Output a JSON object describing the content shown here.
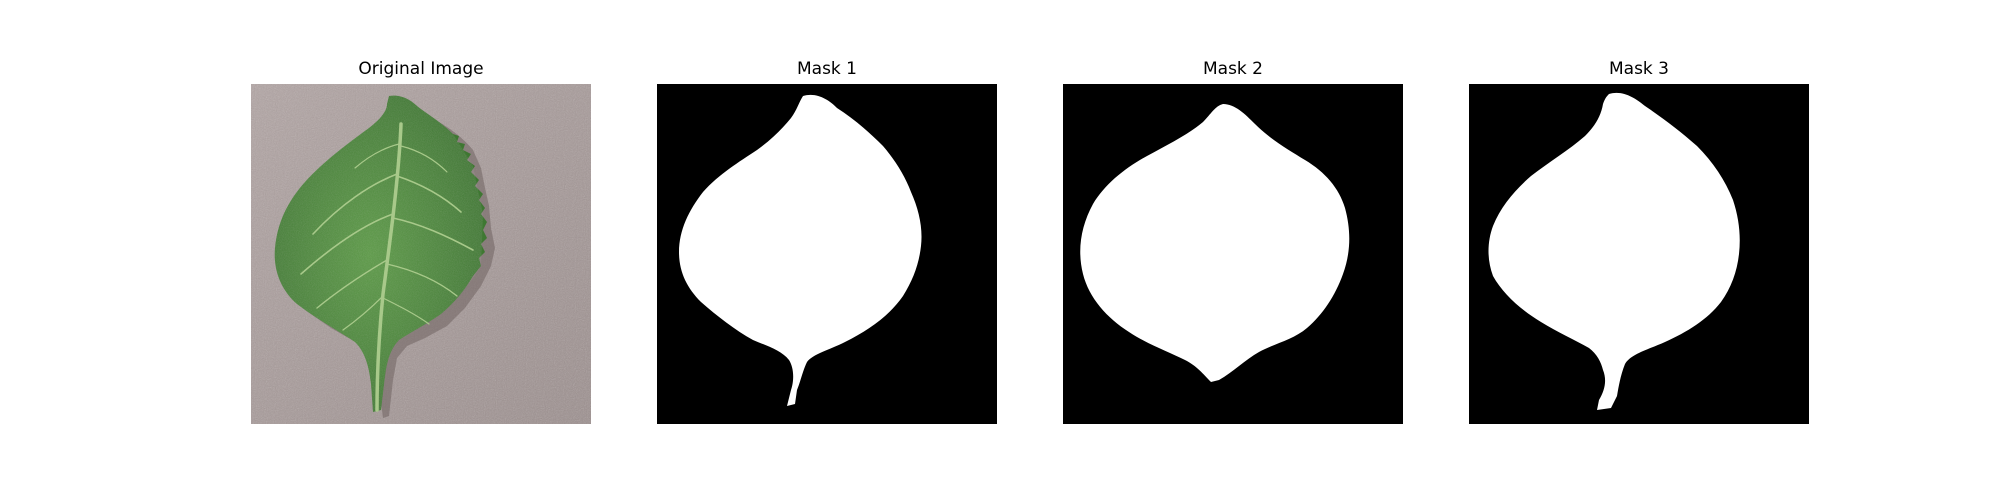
{
  "panels": [
    {
      "title": "Original Image",
      "kind": "photo"
    },
    {
      "title": "Mask 1",
      "kind": "mask"
    },
    {
      "title": "Mask 2",
      "kind": "mask"
    },
    {
      "title": "Mask 3",
      "kind": "mask"
    }
  ],
  "colors": {
    "background": "#ffffff",
    "mask_background": "#000000",
    "mask_foreground": "#ffffff",
    "leaf_green": "#4e8a3a",
    "leaf_dark": "#3a6d2a",
    "vein": "#a9c98a",
    "surface": "#a99c9b"
  }
}
